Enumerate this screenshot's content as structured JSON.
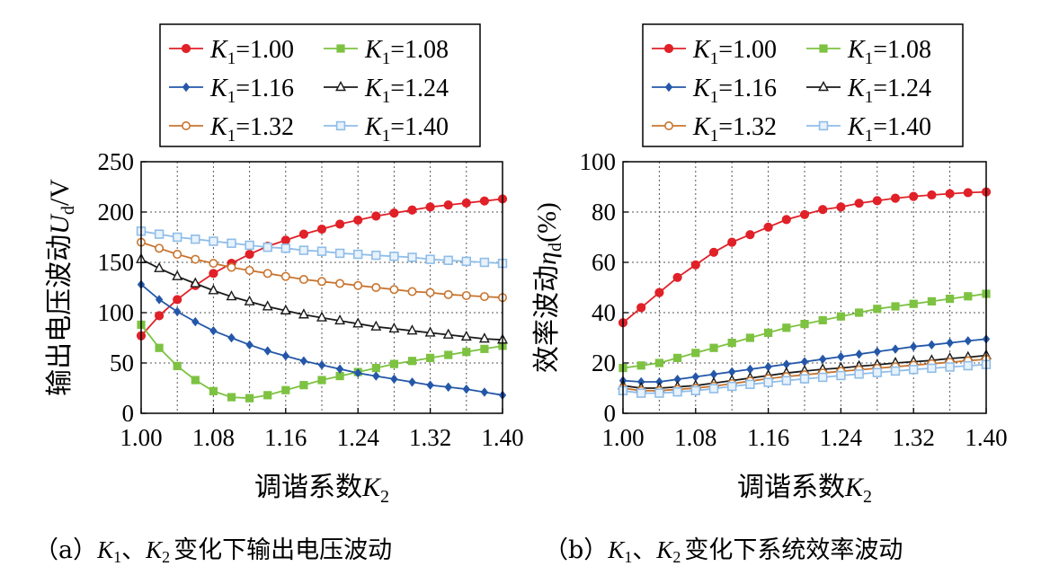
{
  "colors": {
    "K1=1.00": "#e02128",
    "K1=1.08": "#7dc241",
    "K1=1.16": "#2457a8",
    "K1=1.24": "#1a1a1a",
    "K1=1.32": "#c8742e",
    "K1=1.40": "#8fbde8"
  },
  "legend": {
    "k": "K",
    "sub": "1",
    "entries": [
      "=1.00",
      "=1.08",
      "=1.16",
      "=1.24",
      "=1.32",
      "=1.40"
    ]
  },
  "axes": {
    "a_ylabel_text": "输出电压波动",
    "a_ylabel_sym": "U",
    "a_ylabel_sub": "d",
    "a_ylabel_unit": "/V",
    "b_ylabel_text": "效率波动",
    "b_ylabel_sym": "η",
    "b_ylabel_sub": "d",
    "b_ylabel_unit": "(%)",
    "xlabel_text": "调谐系数",
    "xlabel_sym": "K",
    "xlabel_sub": "2"
  },
  "captions": {
    "a_prefix": "（a）",
    "b_prefix": "（b）",
    "k1": "K",
    "k1_sub": "1",
    "sep": "、",
    "k2": "K",
    "k2_sub": "2",
    "a_text": "变化下输出电压波动",
    "b_text": "变化下系统效率波动"
  },
  "chart_data": [
    {
      "type": "line",
      "xlim": [
        1.0,
        1.4
      ],
      "ylim": [
        0,
        250
      ],
      "xticks": [
        "1.00",
        "1.08",
        "1.16",
        "1.24",
        "1.32",
        "1.40"
      ],
      "yticks": [
        "0",
        "50",
        "100",
        "150",
        "200",
        "250"
      ],
      "grid": true,
      "legend_position": "top",
      "x": [
        1.0,
        1.02,
        1.04,
        1.06,
        1.08,
        1.1,
        1.12,
        1.14,
        1.16,
        1.18,
        1.2,
        1.22,
        1.24,
        1.26,
        1.28,
        1.3,
        1.32,
        1.34,
        1.36,
        1.38,
        1.4
      ],
      "series": [
        {
          "name": "K1=1.00",
          "marker": "circle",
          "values": [
            77,
            97,
            113,
            127,
            139,
            149,
            158,
            166,
            172,
            178,
            183,
            188,
            192,
            196,
            199,
            202,
            205,
            207,
            209,
            211,
            213
          ]
        },
        {
          "name": "K1=1.08",
          "marker": "square",
          "values": [
            88,
            65,
            47,
            33,
            22,
            16,
            15,
            18,
            23,
            28,
            33,
            37,
            41,
            45,
            49,
            52,
            55,
            58,
            61,
            64,
            67
          ]
        },
        {
          "name": "K1=1.16",
          "marker": "diamond",
          "values": [
            128,
            113,
            101,
            91,
            82,
            75,
            68,
            62,
            57,
            52,
            48,
            44,
            40,
            37,
            34,
            31,
            28,
            26,
            24,
            21,
            18
          ]
        },
        {
          "name": "K1=1.24",
          "marker": "triangle",
          "values": [
            153,
            144,
            136,
            129,
            122,
            116,
            111,
            106,
            102,
            98,
            95,
            92,
            89,
            86,
            84,
            82,
            80,
            78,
            76,
            74,
            73
          ]
        },
        {
          "name": "K1=1.32",
          "marker": "circle-open",
          "values": [
            170,
            164,
            158,
            153,
            149,
            145,
            142,
            139,
            136,
            133,
            131,
            129,
            127,
            125,
            123,
            121,
            120,
            118,
            117,
            116,
            115
          ]
        },
        {
          "name": "K1=1.40",
          "marker": "square-open",
          "values": [
            181,
            178,
            175,
            173,
            171,
            169,
            167,
            165,
            164,
            162,
            161,
            159,
            158,
            157,
            156,
            155,
            153,
            152,
            151,
            150,
            149
          ]
        }
      ]
    },
    {
      "type": "line",
      "xlim": [
        1.0,
        1.4
      ],
      "ylim": [
        0,
        100
      ],
      "xticks": [
        "1.00",
        "1.08",
        "1.16",
        "1.24",
        "1.32",
        "1.40"
      ],
      "yticks": [
        "0",
        "20",
        "40",
        "60",
        "80",
        "100"
      ],
      "grid": true,
      "legend_position": "top",
      "x": [
        1.0,
        1.02,
        1.04,
        1.06,
        1.08,
        1.1,
        1.12,
        1.14,
        1.16,
        1.18,
        1.2,
        1.22,
        1.24,
        1.26,
        1.28,
        1.3,
        1.32,
        1.34,
        1.36,
        1.38,
        1.4
      ],
      "series": [
        {
          "name": "K1=1.00",
          "marker": "circle",
          "values": [
            36,
            42,
            48,
            54,
            59,
            64,
            68,
            71,
            74,
            77,
            79,
            81,
            82,
            83.5,
            84.5,
            85.5,
            86.2,
            86.8,
            87.3,
            87.7,
            88
          ]
        },
        {
          "name": "K1=1.08",
          "marker": "square",
          "values": [
            18,
            19,
            20,
            22,
            24,
            26,
            28,
            30,
            32,
            34,
            35.5,
            37,
            38.5,
            40,
            41.5,
            42.5,
            43.5,
            44.5,
            45.5,
            46.5,
            47.5
          ]
        },
        {
          "name": "K1=1.16",
          "marker": "diamond",
          "values": [
            13,
            12.5,
            12.5,
            13.5,
            14.5,
            15.5,
            16.5,
            17.5,
            18.5,
            19.5,
            20.5,
            21.5,
            22.5,
            23.5,
            24.5,
            25.5,
            26.5,
            27.2,
            28,
            28.8,
            29.5
          ]
        },
        {
          "name": "K1=1.24",
          "marker": "triangle",
          "values": [
            11,
            10,
            10,
            10.5,
            11,
            12,
            13,
            14,
            15,
            16,
            16.8,
            17.5,
            18,
            18.7,
            19.3,
            20,
            20.5,
            21,
            21.8,
            22.3,
            23
          ]
        },
        {
          "name": "K1=1.32",
          "marker": "circle-open",
          "values": [
            10,
            9,
            9,
            9.5,
            10,
            10.8,
            11.8,
            12.8,
            13.8,
            14.6,
            15.3,
            16,
            16.7,
            17.3,
            17.9,
            18.5,
            19.1,
            19.7,
            20.3,
            20.9,
            21.5
          ]
        },
        {
          "name": "K1=1.40",
          "marker": "square-open",
          "values": [
            9,
            8,
            8,
            8.5,
            9,
            9.8,
            10.7,
            11.5,
            12.3,
            13,
            13.7,
            14.3,
            15,
            15.6,
            16.2,
            16.8,
            17.4,
            17.9,
            18.4,
            18.9,
            19.4
          ]
        }
      ]
    }
  ]
}
